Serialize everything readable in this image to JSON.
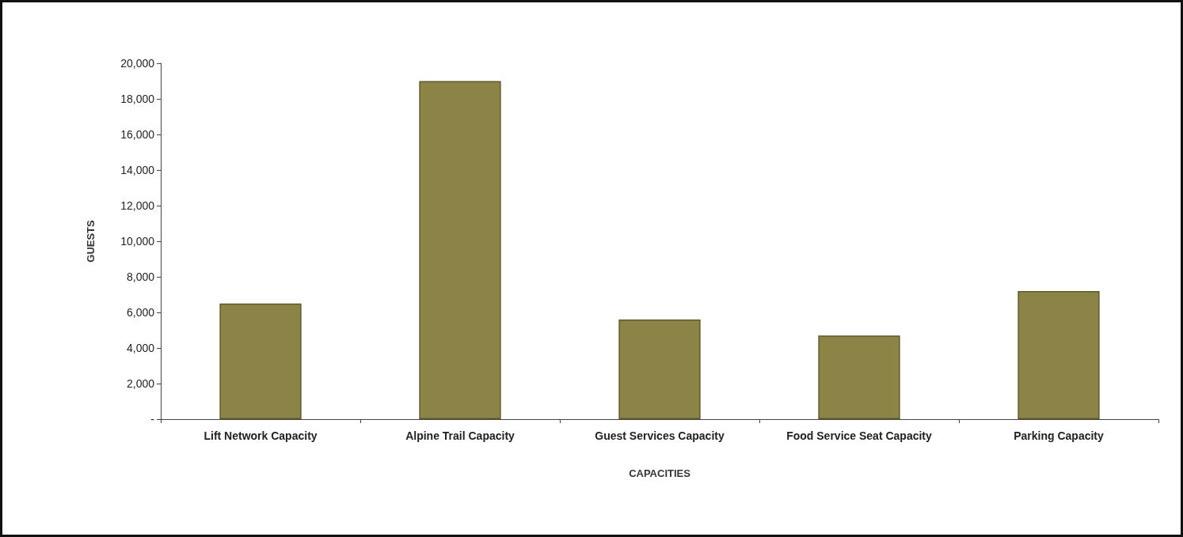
{
  "chart_data": {
    "type": "bar",
    "xlabel": "CAPACITIES",
    "ylabel": "GUESTS",
    "categories": [
      "Lift Network Capacity",
      "Alpine Trail Capacity",
      "Guest Services Capacity",
      "Food Service Seat Capacity",
      "Parking Capacity"
    ],
    "values": [
      6500,
      19000,
      5600,
      4700,
      7200
    ],
    "color": "#8c8446",
    "ylim": [
      0,
      20000
    ],
    "yticks": [
      {
        "value": 0,
        "label": "-"
      },
      {
        "value": 2000,
        "label": "2,000"
      },
      {
        "value": 4000,
        "label": "4,000"
      },
      {
        "value": 6000,
        "label": "6,000"
      },
      {
        "value": 8000,
        "label": "8,000"
      },
      {
        "value": 10000,
        "label": "10,000"
      },
      {
        "value": 12000,
        "label": "12,000"
      },
      {
        "value": 14000,
        "label": "14,000"
      },
      {
        "value": 16000,
        "label": "16,000"
      },
      {
        "value": 18000,
        "label": "18,000"
      },
      {
        "value": 20000,
        "label": "20,000"
      }
    ],
    "grid": false
  }
}
